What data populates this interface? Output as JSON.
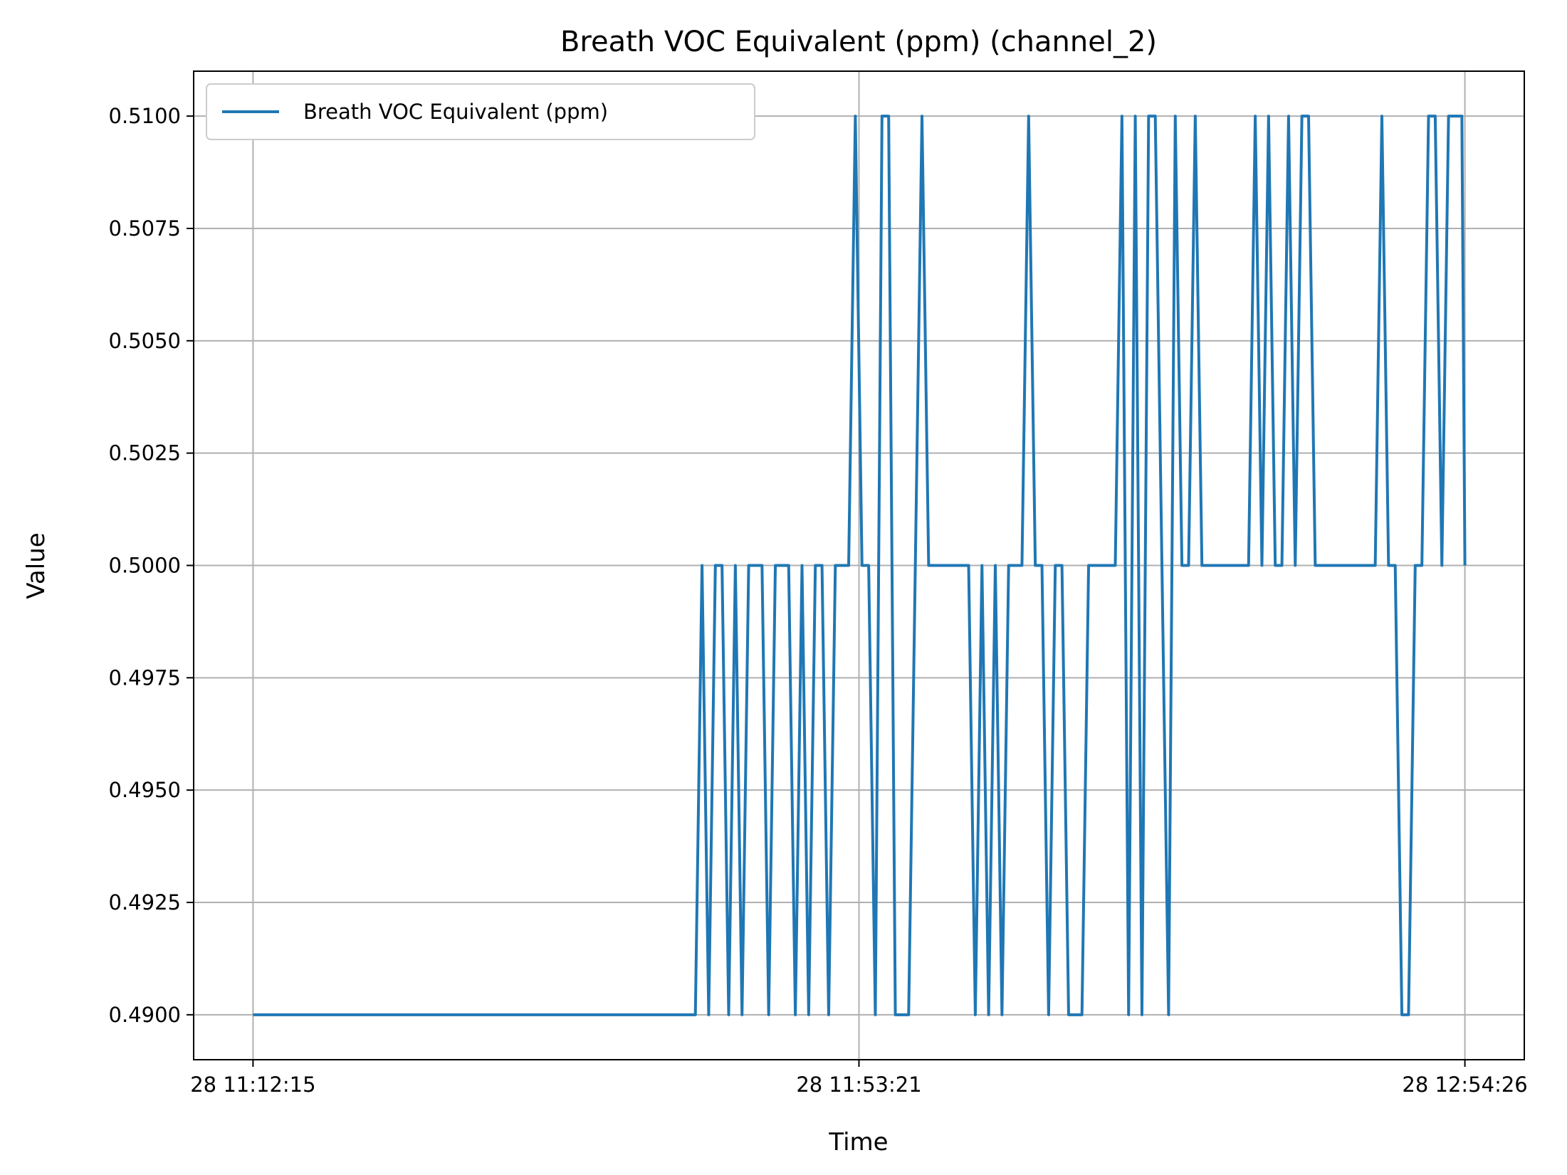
{
  "chart_data": {
    "type": "line",
    "title": "Breath VOC Equivalent (ppm) (channel_2)",
    "xlabel": "Time",
    "ylabel": "Value",
    "ylim": [
      0.489,
      0.511
    ],
    "yticks": [
      0.49,
      0.4925,
      0.495,
      0.4975,
      0.5,
      0.5025,
      0.505,
      0.5075,
      0.51
    ],
    "ytick_labels": [
      "0.4900",
      "0.4925",
      "0.4950",
      "0.4975",
      "0.5000",
      "0.5025",
      "0.5050",
      "0.5075",
      "0.5100"
    ],
    "x_range": [
      -0.098,
      2.098
    ],
    "xticks": [
      0,
      1,
      2
    ],
    "xtick_labels": [
      "28 11:12:15",
      "28 11:53:21",
      "28 12:54:26"
    ],
    "grid": true,
    "legend_position": "upper-left",
    "series": [
      {
        "name": "Breath VOC Equivalent (ppm)",
        "color": "#1f77b4",
        "x": [
          0,
          0.73,
          0.741,
          0.752,
          0.763,
          0.774,
          0.785,
          0.796,
          0.807,
          0.818,
          0.829,
          0.84,
          0.851,
          0.862,
          0.873,
          0.884,
          0.895,
          0.906,
          0.917,
          0.928,
          0.939,
          0.95,
          0.961,
          0.972,
          0.983,
          0.994,
          1.005,
          1.016,
          1.027,
          1.038,
          1.049,
          1.06,
          1.071,
          1.082,
          1.093,
          1.104,
          1.115,
          1.126,
          1.137,
          1.148,
          1.159,
          1.17,
          1.181,
          1.192,
          1.203,
          1.214,
          1.225,
          1.236,
          1.247,
          1.258,
          1.269,
          1.28,
          1.291,
          1.302,
          1.313,
          1.324,
          1.335,
          1.346,
          1.357,
          1.368,
          1.379,
          1.39,
          1.401,
          1.412,
          1.423,
          1.434,
          1.445,
          1.456,
          1.467,
          1.478,
          1.489,
          1.5,
          1.511,
          1.522,
          1.533,
          1.544,
          1.555,
          1.566,
          1.577,
          1.588,
          1.599,
          1.61,
          1.621,
          1.632,
          1.643,
          1.654,
          1.665,
          1.676,
          1.687,
          1.698,
          1.709,
          1.72,
          1.731,
          1.742,
          1.753,
          1.764,
          1.775,
          1.786,
          1.797,
          1.808,
          1.819,
          1.83,
          1.841,
          1.852,
          1.863,
          1.874,
          1.885,
          1.896,
          1.907,
          1.918,
          1.929,
          1.94,
          1.951,
          1.962,
          1.973,
          1.984,
          1.995,
          2.0
        ],
        "values": [
          0.49,
          0.49,
          0.5,
          0.49,
          0.5,
          0.5,
          0.49,
          0.5,
          0.49,
          0.5,
          0.5,
          0.5,
          0.49,
          0.5,
          0.5,
          0.5,
          0.49,
          0.5,
          0.49,
          0.5,
          0.5,
          0.49,
          0.5,
          0.5,
          0.5,
          0.51,
          0.5,
          0.5,
          0.49,
          0.51,
          0.51,
          0.49,
          0.49,
          0.49,
          0.5,
          0.51,
          0.5,
          0.5,
          0.5,
          0.5,
          0.5,
          0.5,
          0.5,
          0.49,
          0.5,
          0.49,
          0.5,
          0.49,
          0.5,
          0.5,
          0.5,
          0.51,
          0.5,
          0.5,
          0.49,
          0.5,
          0.5,
          0.49,
          0.49,
          0.49,
          0.5,
          0.5,
          0.5,
          0.5,
          0.5,
          0.51,
          0.49,
          0.51,
          0.49,
          0.51,
          0.51,
          0.5,
          0.49,
          0.51,
          0.5,
          0.5,
          0.51,
          0.5,
          0.5,
          0.5,
          0.5,
          0.5,
          0.5,
          0.5,
          0.5,
          0.51,
          0.5,
          0.51,
          0.5,
          0.5,
          0.51,
          0.5,
          0.51,
          0.51,
          0.5,
          0.5,
          0.5,
          0.5,
          0.5,
          0.5,
          0.5,
          0.5,
          0.5,
          0.5,
          0.51,
          0.5,
          0.5,
          0.49,
          0.49,
          0.5,
          0.5,
          0.51,
          0.51,
          0.5,
          0.51,
          0.51,
          0.51,
          0.5
        ]
      }
    ]
  }
}
